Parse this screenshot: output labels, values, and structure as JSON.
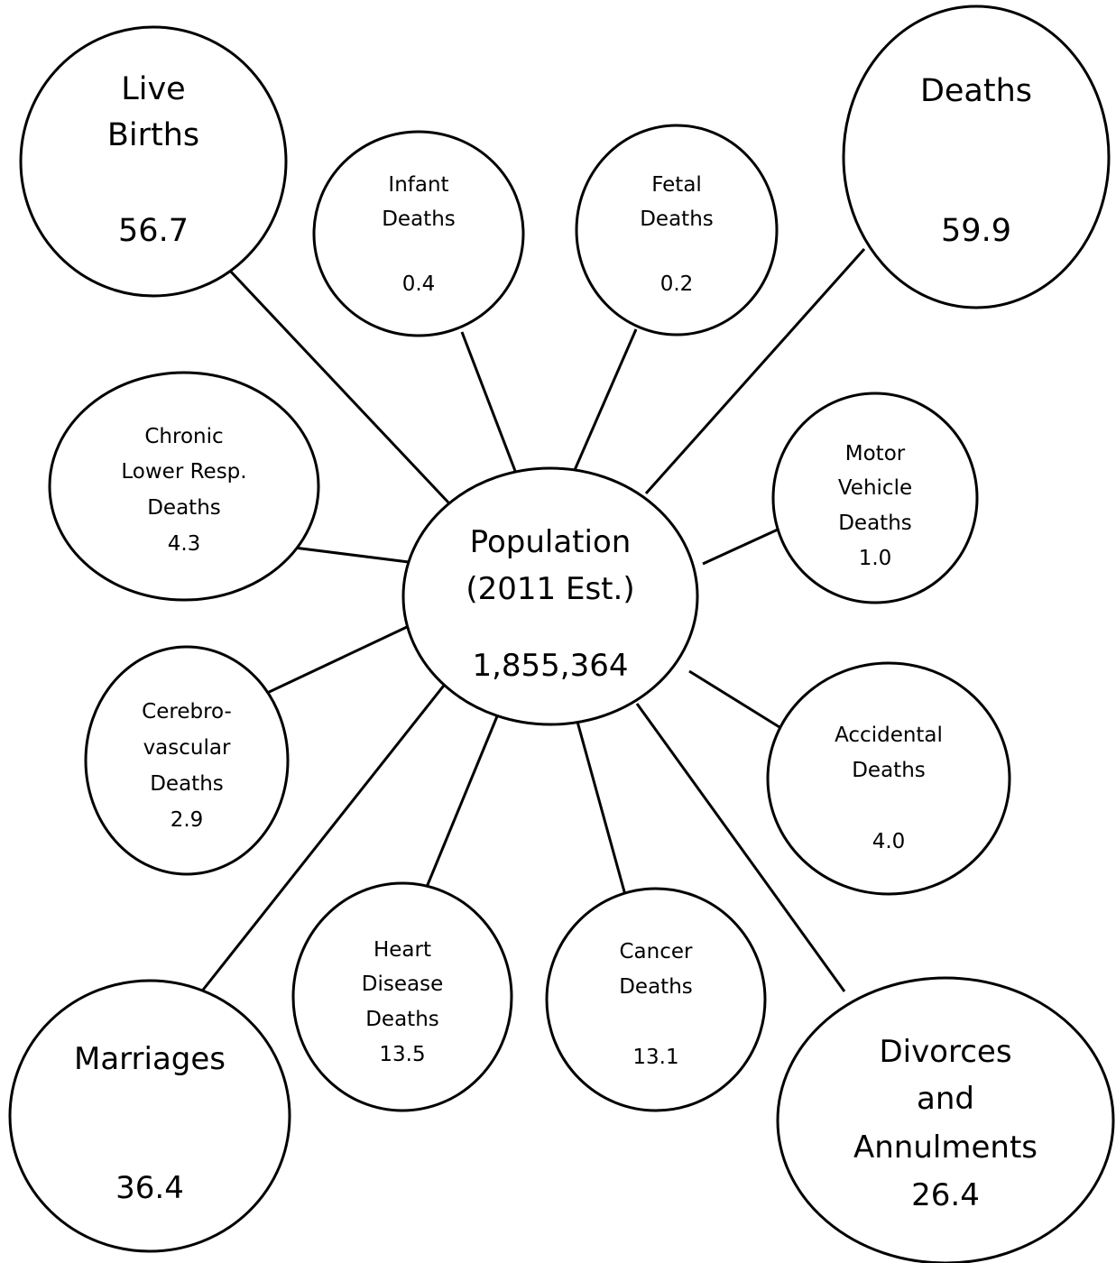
{
  "center": {
    "title_line1": "Population",
    "title_line2": "(2011 Est.)",
    "value": "1,855,364"
  },
  "nodes": {
    "live_births": {
      "line1": "Live",
      "line2": "Births",
      "value": "56.7"
    },
    "infant_deaths": {
      "line1": "Infant",
      "line2": "Deaths",
      "value": "0.4"
    },
    "fetal_deaths": {
      "line1": "Fetal",
      "line2": "Deaths",
      "value": "0.2"
    },
    "deaths": {
      "line1": "Deaths",
      "value": "59.9"
    },
    "chronic_lower_resp_deaths": {
      "line1": "Chronic",
      "line2": "Lower Resp.",
      "line3": "Deaths",
      "value": "4.3"
    },
    "motor_vehicle_deaths": {
      "line1": "Motor",
      "line2": "Vehicle",
      "line3": "Deaths",
      "value": "1.0"
    },
    "cerebrovascular_deaths": {
      "line1": "Cerebro-",
      "line2": "vascular",
      "line3": "Deaths",
      "value": "2.9"
    },
    "accidental_deaths": {
      "line1": "Accidental",
      "line2": "Deaths",
      "value": "4.0"
    },
    "marriages": {
      "line1": "Marriages",
      "value": "36.4"
    },
    "heart_disease_deaths": {
      "line1": "Heart",
      "line2": "Disease",
      "line3": "Deaths",
      "value": "13.5"
    },
    "cancer_deaths": {
      "line1": "Cancer",
      "line2": "Deaths",
      "value": "13.1"
    },
    "divorces_and_annulments": {
      "line1": "Divorces",
      "line2": "and",
      "line3": "Annulments",
      "value": "26.4"
    }
  }
}
